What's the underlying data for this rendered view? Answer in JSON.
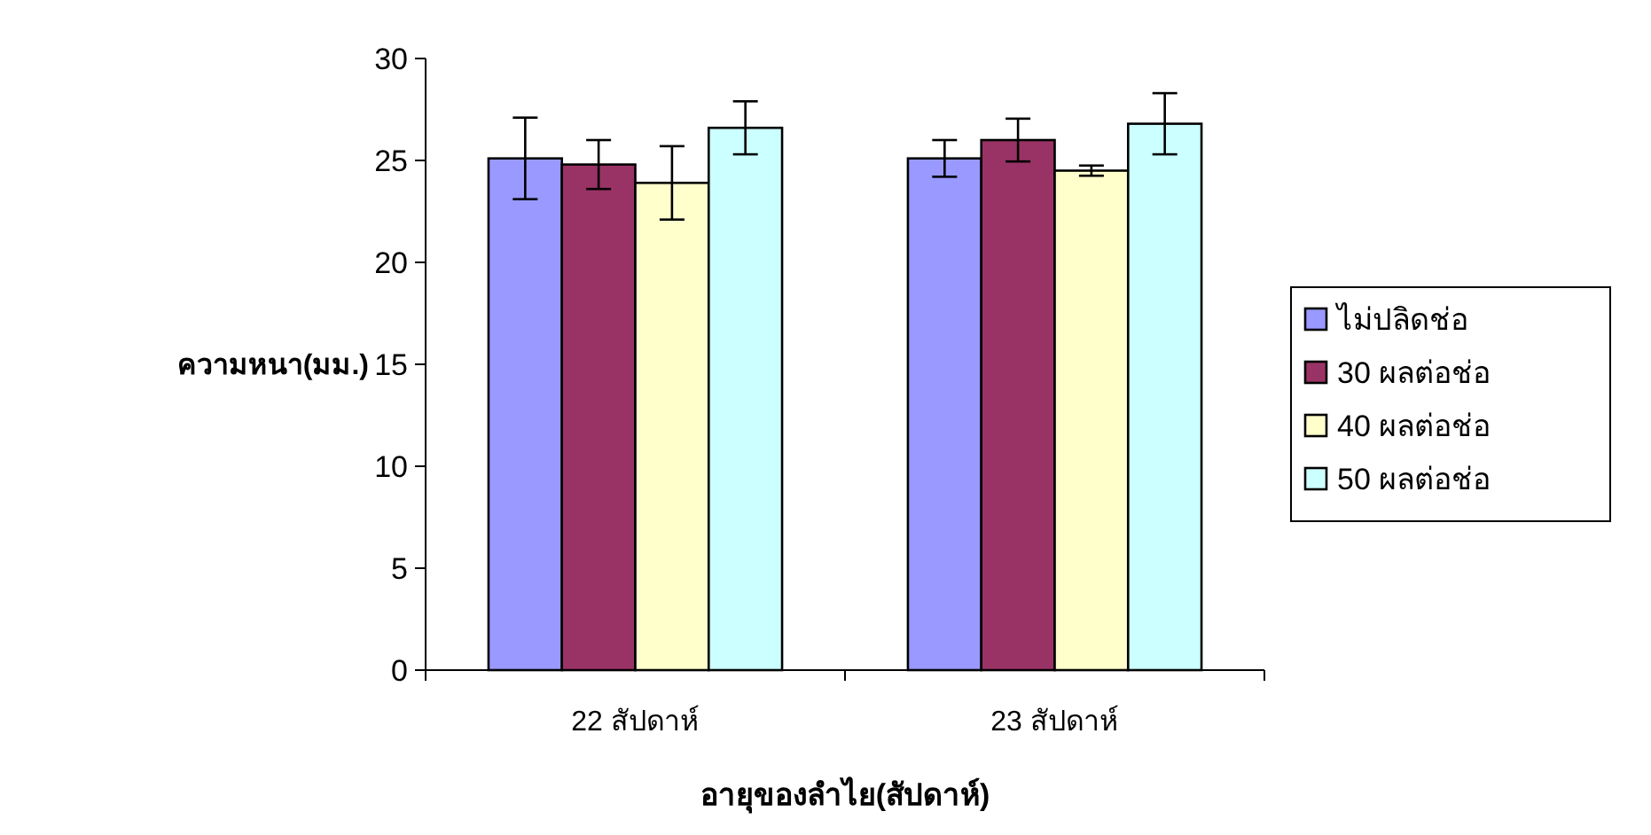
{
  "chart_data": {
    "type": "bar",
    "xlabel": "อายุของลำไย(สัปดาห์)",
    "ylabel": "ความหนา(มม.)",
    "categories": [
      "22 สัปดาห์",
      "23 สัปดาห์"
    ],
    "series": [
      {
        "name": "ไม่ปลิดช่อ",
        "color": "#9999ff",
        "values": [
          25.1,
          25.1
        ],
        "errors": [
          2.0,
          0.9
        ]
      },
      {
        "name": "30 ผลต่อช่อ",
        "color": "#993366",
        "values": [
          24.8,
          26.0
        ],
        "errors": [
          1.2,
          1.05
        ]
      },
      {
        "name": "40 ผลต่อช่อ",
        "color": "#ffffcc",
        "values": [
          23.9,
          24.5
        ],
        "errors": [
          1.8,
          0.25
        ]
      },
      {
        "name": "50 ผลต่อช่อ",
        "color": "#ccffff",
        "values": [
          26.6,
          26.8
        ],
        "errors": [
          1.3,
          1.5
        ]
      }
    ],
    "ylim": [
      0,
      30
    ],
    "yticks": [
      0,
      5,
      10,
      15,
      20,
      25,
      30
    ],
    "grid": false,
    "legend": "right"
  }
}
